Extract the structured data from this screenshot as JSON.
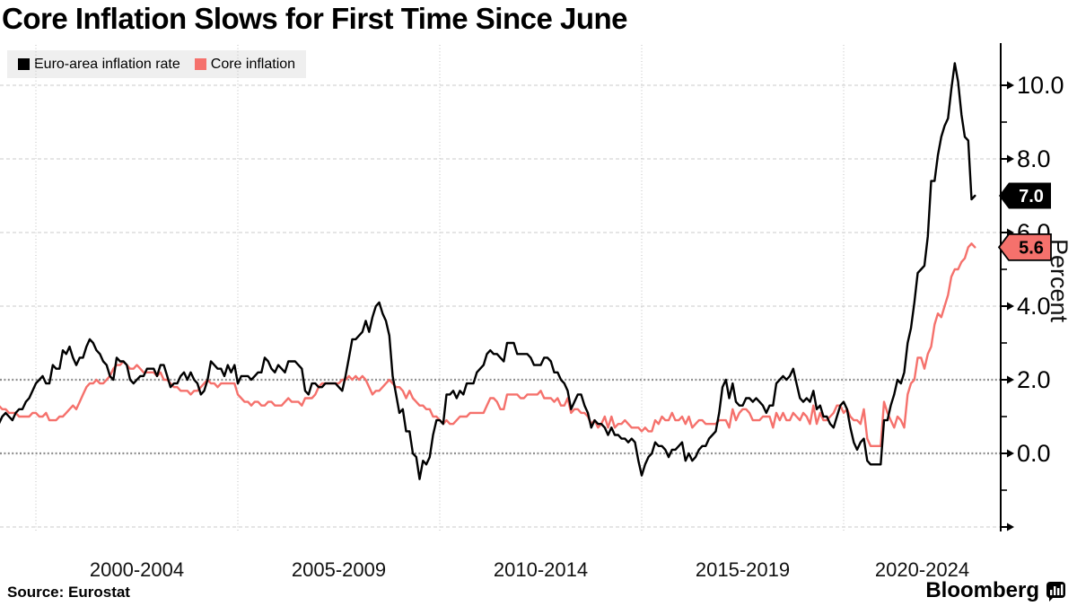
{
  "title": "Core Inflation Slows for First Time Since June",
  "legend": {
    "items": [
      {
        "label": "Euro-area inflation rate",
        "color": "#000000"
      },
      {
        "label": "Core inflation",
        "color": "#f5716c"
      }
    ]
  },
  "source": "Source: Eurostat",
  "branding": {
    "name": "Bloomberg"
  },
  "y_axis": {
    "title": "Percent",
    "major_ticks": [
      10,
      8,
      6,
      4,
      2,
      0
    ],
    "minor_ticks": [
      9,
      7,
      5,
      3,
      1,
      -1
    ],
    "end_tick": -2
  },
  "annotations": [
    {
      "text": "7.0",
      "value": 7.0,
      "series": "Euro-area inflation rate",
      "fill": "#000000",
      "stroke": "none",
      "text_color": "#ffffff",
      "name": "euro-area-data-label-tag"
    },
    {
      "text": "5.6",
      "value": 5.6,
      "series": "Core inflation",
      "fill": "#f5716c",
      "stroke": "#000000",
      "text_color": "#000000",
      "name": "core-inflation-data-label-tag"
    }
  ],
  "chart_data": {
    "type": "line",
    "title": "Core Inflation Slows for First Time Since June",
    "ylabel": "Percent",
    "ylim": [
      -2.1,
      11.1
    ],
    "x_start": {
      "year": 1999,
      "month": 1
    },
    "x_end": {
      "year": 2023,
      "month": 4
    },
    "frequency": "monthly",
    "x_tick_labels": [
      "2000-2004",
      "2005-2009",
      "2010-2014",
      "2015-2019",
      "2020-2024"
    ],
    "gridlines": {
      "horizontal_light": [
        10,
        8,
        6,
        4,
        -2
      ],
      "horizontal_emphasis": [
        2,
        0
      ],
      "vertical_years": [
        2000,
        2005,
        2010,
        2015,
        2020
      ]
    },
    "legend_position": "top-left",
    "series": [
      {
        "name": "Euro-area inflation rate",
        "color": "#000000",
        "values": [
          0.8,
          0.8,
          1.0,
          1.1,
          1.0,
          0.9,
          1.1,
          1.2,
          1.2,
          1.4,
          1.5,
          1.7,
          1.9,
          2.0,
          2.1,
          1.9,
          1.9,
          2.4,
          2.3,
          2.3,
          2.8,
          2.7,
          2.9,
          2.6,
          2.4,
          2.6,
          2.6,
          2.9,
          3.1,
          3.0,
          2.8,
          2.7,
          2.5,
          2.4,
          2.1,
          2.0,
          2.6,
          2.5,
          2.5,
          2.4,
          2.0,
          1.9,
          2.0,
          2.1,
          2.1,
          2.3,
          2.3,
          2.3,
          2.1,
          2.4,
          2.4,
          2.1,
          1.8,
          1.9,
          1.9,
          2.1,
          2.2,
          2.0,
          2.2,
          2.0,
          1.9,
          1.6,
          1.7,
          2.0,
          2.5,
          2.4,
          2.3,
          2.3,
          2.1,
          2.4,
          2.2,
          2.4,
          1.9,
          2.1,
          2.1,
          2.1,
          2.0,
          2.1,
          2.2,
          2.2,
          2.6,
          2.5,
          2.3,
          2.2,
          2.4,
          2.3,
          2.2,
          2.5,
          2.5,
          2.5,
          2.4,
          2.3,
          1.7,
          1.6,
          1.9,
          1.9,
          1.8,
          1.8,
          1.9,
          1.9,
          1.9,
          1.9,
          1.8,
          1.7,
          2.1,
          2.6,
          3.1,
          3.1,
          3.2,
          3.3,
          3.6,
          3.3,
          3.7,
          4.0,
          4.1,
          3.8,
          3.6,
          3.2,
          2.1,
          1.6,
          1.1,
          1.2,
          0.6,
          0.6,
          0.0,
          -0.1,
          -0.7,
          -0.2,
          -0.3,
          -0.1,
          0.5,
          0.9,
          0.9,
          0.8,
          1.6,
          1.6,
          1.7,
          1.5,
          1.7,
          1.6,
          1.9,
          1.9,
          1.9,
          2.2,
          2.3,
          2.4,
          2.7,
          2.8,
          2.7,
          2.7,
          2.6,
          2.5,
          3.0,
          3.0,
          3.0,
          2.7,
          2.7,
          2.7,
          2.7,
          2.6,
          2.4,
          2.4,
          2.4,
          2.6,
          2.6,
          2.5,
          2.2,
          2.2,
          2.0,
          1.9,
          1.7,
          1.2,
          1.4,
          1.6,
          1.6,
          1.3,
          1.1,
          0.7,
          0.9,
          0.8,
          0.8,
          0.7,
          0.5,
          0.7,
          0.5,
          0.5,
          0.4,
          0.4,
          0.3,
          0.4,
          0.3,
          -0.2,
          -0.6,
          -0.3,
          -0.1,
          0.0,
          0.3,
          0.2,
          0.2,
          0.1,
          -0.1,
          0.1,
          0.1,
          0.2,
          0.3,
          -0.2,
          0.0,
          -0.2,
          -0.1,
          0.1,
          0.2,
          0.2,
          0.4,
          0.5,
          0.6,
          1.1,
          1.8,
          2.0,
          1.5,
          1.9,
          1.4,
          1.3,
          1.3,
          1.5,
          1.5,
          1.4,
          1.5,
          1.4,
          1.3,
          1.1,
          1.3,
          1.3,
          1.9,
          2.0,
          2.1,
          2.0,
          2.1,
          2.3,
          1.9,
          1.5,
          1.4,
          1.5,
          1.4,
          1.7,
          1.2,
          1.3,
          1.0,
          1.0,
          0.8,
          0.7,
          1.0,
          1.3,
          1.4,
          1.2,
          0.7,
          0.3,
          0.1,
          0.3,
          0.4,
          -0.2,
          -0.3,
          -0.3,
          -0.3,
          -0.3,
          0.9,
          0.9,
          1.3,
          1.6,
          2.0,
          1.9,
          2.2,
          3.0,
          3.4,
          4.1,
          4.9,
          5.0,
          5.1,
          5.9,
          7.4,
          7.4,
          8.1,
          8.6,
          8.9,
          9.1,
          9.9,
          10.6,
          10.1,
          9.2,
          8.6,
          8.5,
          6.9,
          7.0
        ]
      },
      {
        "name": "Core inflation",
        "color": "#f5716c",
        "values": [
          1.4,
          1.3,
          1.2,
          1.2,
          1.1,
          1.1,
          1.1,
          1.0,
          1.0,
          1.0,
          1.0,
          1.1,
          1.1,
          1.0,
          1.0,
          1.1,
          0.9,
          0.9,
          0.9,
          1.0,
          1.0,
          1.1,
          1.2,
          1.3,
          1.2,
          1.4,
          1.6,
          1.8,
          1.9,
          1.9,
          2.0,
          1.9,
          1.9,
          2.0,
          2.1,
          2.3,
          2.4,
          2.4,
          2.5,
          2.4,
          2.3,
          2.3,
          2.4,
          2.3,
          2.2,
          2.2,
          2.2,
          2.2,
          2.1,
          2.2,
          2.0,
          2.0,
          1.9,
          1.8,
          1.8,
          1.7,
          1.7,
          1.7,
          1.6,
          1.7,
          1.7,
          1.8,
          1.9,
          2.0,
          1.9,
          1.9,
          1.8,
          1.9,
          1.9,
          1.9,
          1.9,
          1.9,
          1.6,
          1.5,
          1.4,
          1.4,
          1.3,
          1.4,
          1.4,
          1.3,
          1.3,
          1.4,
          1.4,
          1.3,
          1.3,
          1.3,
          1.4,
          1.5,
          1.4,
          1.4,
          1.4,
          1.3,
          1.5,
          1.5,
          1.5,
          1.6,
          1.8,
          1.9,
          1.9,
          1.9,
          1.9,
          1.9,
          1.9,
          2.0,
          2.0,
          2.1,
          2.0,
          2.1,
          2.0,
          2.1,
          2.0,
          1.8,
          1.6,
          1.7,
          1.7,
          1.8,
          1.9,
          2.0,
          1.9,
          1.8,
          1.8,
          1.7,
          1.5,
          1.7,
          1.5,
          1.4,
          1.3,
          1.3,
          1.2,
          1.2,
          1.0,
          1.0,
          0.9,
          0.8,
          0.9,
          0.8,
          0.8,
          0.9,
          1.0,
          1.0,
          1.0,
          1.1,
          1.1,
          1.1,
          1.1,
          1.1,
          1.3,
          1.5,
          1.5,
          1.4,
          1.2,
          1.2,
          1.6,
          1.6,
          1.6,
          1.6,
          1.5,
          1.5,
          1.6,
          1.6,
          1.6,
          1.6,
          1.7,
          1.5,
          1.5,
          1.5,
          1.4,
          1.5,
          1.3,
          1.3,
          1.5,
          1.1,
          1.2,
          1.2,
          1.1,
          1.1,
          1.0,
          0.8,
          0.9,
          0.7,
          0.8,
          1.0,
          0.7,
          1.0,
          0.7,
          0.8,
          0.8,
          0.9,
          0.8,
          0.7,
          0.7,
          0.7,
          0.6,
          0.7,
          0.6,
          0.6,
          0.9,
          0.8,
          1.0,
          0.9,
          0.9,
          1.1,
          0.9,
          0.9,
          1.0,
          0.8,
          1.0,
          0.7,
          0.8,
          0.9,
          0.9,
          0.8,
          0.8,
          0.8,
          0.8,
          0.9,
          0.9,
          0.9,
          0.7,
          1.2,
          0.9,
          1.1,
          1.2,
          1.2,
          1.1,
          0.9,
          0.9,
          0.9,
          1.0,
          1.0,
          1.0,
          0.7,
          1.1,
          0.9,
          1.1,
          0.9,
          0.9,
          1.1,
          1.0,
          0.9,
          1.1,
          1.0,
          0.8,
          1.3,
          0.8,
          1.1,
          0.9,
          0.9,
          1.0,
          1.1,
          1.3,
          1.3,
          1.1,
          1.2,
          1.0,
          0.9,
          0.9,
          0.8,
          1.2,
          0.4,
          0.2,
          0.2,
          0.2,
          0.2,
          1.4,
          1.1,
          0.9,
          0.7,
          1.0,
          0.9,
          0.7,
          1.6,
          1.9,
          2.0,
          2.6,
          2.6,
          2.3,
          2.7,
          2.9,
          3.5,
          3.8,
          3.7,
          4.0,
          4.3,
          4.8,
          5.0,
          5.0,
          5.2,
          5.3,
          5.6,
          5.7,
          5.6
        ]
      }
    ]
  }
}
